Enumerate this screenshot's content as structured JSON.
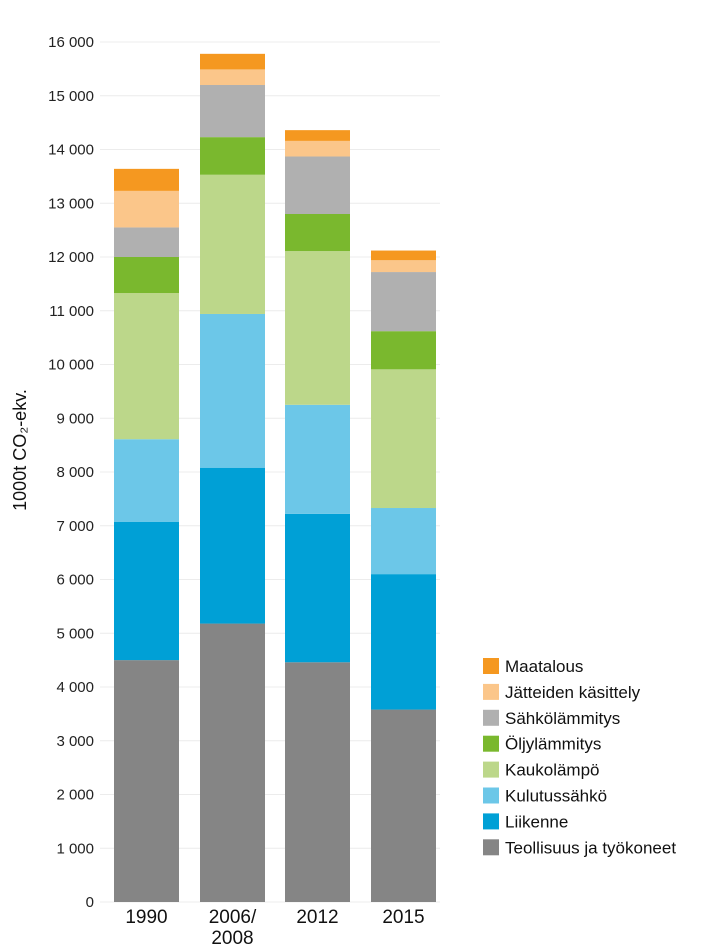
{
  "chart_data": {
    "type": "bar",
    "stacked": true,
    "title": "",
    "xlabel": "",
    "ylabel": "1000t CO₂-ekv.",
    "ylim": [
      0,
      16000
    ],
    "yticks": [
      0,
      1000,
      2000,
      3000,
      4000,
      5000,
      6000,
      7000,
      8000,
      9000,
      10000,
      11000,
      12000,
      13000,
      14000,
      15000,
      16000
    ],
    "ytick_labels": [
      "0",
      "1 000",
      "2 000",
      "3 000",
      "4 000",
      "5 000",
      "6 000",
      "7 000",
      "8 000",
      "9 000",
      "10 000",
      "11 000",
      "12 000",
      "13 000",
      "14 000",
      "15 000",
      "16 000"
    ],
    "grid": true,
    "legend_position": "right-bottom",
    "categories": [
      {
        "line1": "1990",
        "line2": ""
      },
      {
        "line1": "2006/",
        "line2": "2008"
      },
      {
        "line1": "2012",
        "line2": ""
      },
      {
        "line1": "2015",
        "line2": ""
      }
    ],
    "series": [
      {
        "name": "Teollisuus ja työkoneet",
        "color": "#858585",
        "values": [
          4500,
          5180,
          4460,
          3580
        ]
      },
      {
        "name": "Liikenne",
        "color": "#00a0d6",
        "values": [
          2570,
          2900,
          2760,
          2520
        ]
      },
      {
        "name": "Kulutussähkö",
        "color": "#6cc7e8",
        "values": [
          1540,
          2860,
          2030,
          1230
        ]
      },
      {
        "name": "Kaukolämpö",
        "color": "#bcd78a",
        "values": [
          2720,
          2590,
          2860,
          2580
        ]
      },
      {
        "name": "Öljylämmitys",
        "color": "#7ab82e",
        "values": [
          670,
          700,
          690,
          710
        ]
      },
      {
        "name": "Sähkölämmitys",
        "color": "#b0b0b0",
        "values": [
          550,
          970,
          1070,
          1100
        ]
      },
      {
        "name": "Jätteiden käsittely",
        "color": "#fbc68a",
        "values": [
          680,
          290,
          290,
          220
        ]
      },
      {
        "name": "Maatalous",
        "color": "#f59820",
        "values": [
          410,
          290,
          200,
          180
        ]
      }
    ]
  }
}
